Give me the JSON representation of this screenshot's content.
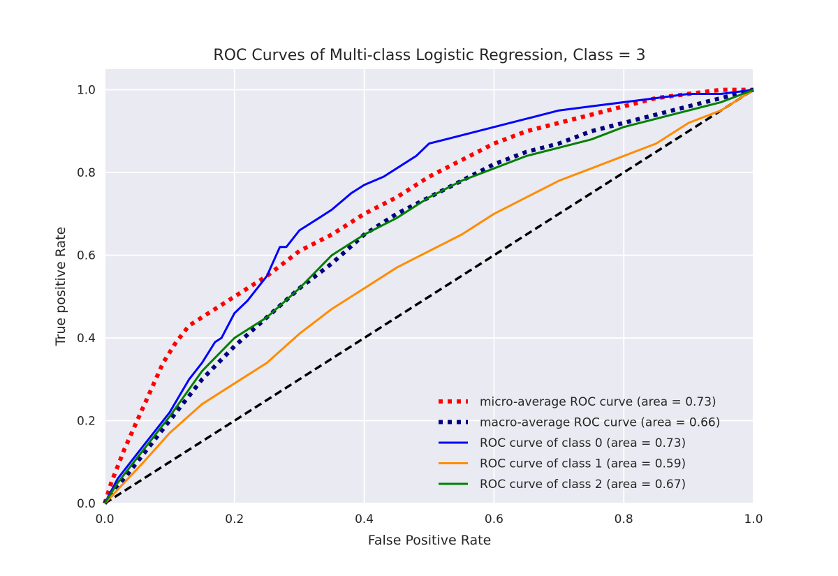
{
  "chart_data": {
    "type": "line",
    "title": "ROC Curves of Multi-class Logistic Regression, Class = 3",
    "xlabel": "False Positive Rate",
    "ylabel": "True positive Rate",
    "xlim": [
      0.0,
      1.0
    ],
    "ylim": [
      0.0,
      1.05
    ],
    "x_ticks": [
      "0.0",
      "0.2",
      "0.4",
      "0.6",
      "0.8",
      "1.0"
    ],
    "y_ticks": [
      "0.0",
      "0.2",
      "0.4",
      "0.6",
      "0.8",
      "1.0"
    ],
    "grid": true,
    "legend_position": "lower-right",
    "series": [
      {
        "name": "micro-average ROC curve (area = 0.73)",
        "color": "#ff0000",
        "style": "dotted",
        "points": [
          [
            0.0,
            0.0
          ],
          [
            0.01,
            0.05
          ],
          [
            0.02,
            0.09
          ],
          [
            0.03,
            0.13
          ],
          [
            0.05,
            0.2
          ],
          [
            0.07,
            0.27
          ],
          [
            0.09,
            0.34
          ],
          [
            0.11,
            0.39
          ],
          [
            0.13,
            0.43
          ],
          [
            0.16,
            0.46
          ],
          [
            0.2,
            0.5
          ],
          [
            0.25,
            0.55
          ],
          [
            0.3,
            0.61
          ],
          [
            0.35,
            0.65
          ],
          [
            0.4,
            0.7
          ],
          [
            0.45,
            0.74
          ],
          [
            0.5,
            0.79
          ],
          [
            0.55,
            0.83
          ],
          [
            0.6,
            0.87
          ],
          [
            0.65,
            0.9
          ],
          [
            0.7,
            0.92
          ],
          [
            0.75,
            0.94
          ],
          [
            0.8,
            0.96
          ],
          [
            0.85,
            0.98
          ],
          [
            0.9,
            0.99
          ],
          [
            0.95,
            1.0
          ],
          [
            1.0,
            1.0
          ]
        ]
      },
      {
        "name": "macro-average ROC curve (area = 0.66)",
        "color": "#000080",
        "style": "dotted",
        "points": [
          [
            0.0,
            0.0
          ],
          [
            0.02,
            0.04
          ],
          [
            0.05,
            0.1
          ],
          [
            0.1,
            0.2
          ],
          [
            0.15,
            0.3
          ],
          [
            0.2,
            0.38
          ],
          [
            0.25,
            0.45
          ],
          [
            0.3,
            0.52
          ],
          [
            0.35,
            0.58
          ],
          [
            0.4,
            0.65
          ],
          [
            0.45,
            0.7
          ],
          [
            0.5,
            0.74
          ],
          [
            0.55,
            0.78
          ],
          [
            0.6,
            0.82
          ],
          [
            0.65,
            0.85
          ],
          [
            0.7,
            0.87
          ],
          [
            0.75,
            0.9
          ],
          [
            0.8,
            0.92
          ],
          [
            0.85,
            0.94
          ],
          [
            0.9,
            0.96
          ],
          [
            0.95,
            0.98
          ],
          [
            1.0,
            1.0
          ]
        ]
      },
      {
        "name": "ROC curve of class 0 (area = 0.73)",
        "color": "#0000ff",
        "style": "solid",
        "points": [
          [
            0.0,
            0.0
          ],
          [
            0.02,
            0.06
          ],
          [
            0.05,
            0.12
          ],
          [
            0.08,
            0.18
          ],
          [
            0.1,
            0.22
          ],
          [
            0.13,
            0.3
          ],
          [
            0.15,
            0.34
          ],
          [
            0.17,
            0.39
          ],
          [
            0.18,
            0.4
          ],
          [
            0.2,
            0.46
          ],
          [
            0.22,
            0.49
          ],
          [
            0.25,
            0.55
          ],
          [
            0.27,
            0.62
          ],
          [
            0.28,
            0.62
          ],
          [
            0.3,
            0.66
          ],
          [
            0.33,
            0.69
          ],
          [
            0.35,
            0.71
          ],
          [
            0.38,
            0.75
          ],
          [
            0.4,
            0.77
          ],
          [
            0.43,
            0.79
          ],
          [
            0.45,
            0.81
          ],
          [
            0.48,
            0.84
          ],
          [
            0.5,
            0.87
          ],
          [
            0.55,
            0.89
          ],
          [
            0.6,
            0.91
          ],
          [
            0.65,
            0.93
          ],
          [
            0.7,
            0.95
          ],
          [
            0.75,
            0.96
          ],
          [
            0.8,
            0.97
          ],
          [
            0.85,
            0.98
          ],
          [
            0.9,
            0.99
          ],
          [
            0.95,
            0.99
          ],
          [
            1.0,
            1.0
          ]
        ]
      },
      {
        "name": "ROC curve of class 1 (area = 0.59)",
        "color": "#ff8c00",
        "style": "solid",
        "points": [
          [
            0.0,
            0.0
          ],
          [
            0.03,
            0.05
          ],
          [
            0.06,
            0.1
          ],
          [
            0.1,
            0.17
          ],
          [
            0.15,
            0.24
          ],
          [
            0.2,
            0.29
          ],
          [
            0.25,
            0.34
          ],
          [
            0.3,
            0.41
          ],
          [
            0.35,
            0.47
          ],
          [
            0.4,
            0.52
          ],
          [
            0.45,
            0.57
          ],
          [
            0.5,
            0.61
          ],
          [
            0.55,
            0.65
          ],
          [
            0.6,
            0.7
          ],
          [
            0.65,
            0.74
          ],
          [
            0.7,
            0.78
          ],
          [
            0.75,
            0.81
          ],
          [
            0.8,
            0.84
          ],
          [
            0.85,
            0.87
          ],
          [
            0.9,
            0.92
          ],
          [
            0.95,
            0.95
          ],
          [
            1.0,
            1.0
          ]
        ]
      },
      {
        "name": "ROC curve of class 2 (area = 0.67)",
        "color": "#008000",
        "style": "solid",
        "points": [
          [
            0.0,
            0.0
          ],
          [
            0.02,
            0.05
          ],
          [
            0.05,
            0.11
          ],
          [
            0.1,
            0.21
          ],
          [
            0.15,
            0.32
          ],
          [
            0.2,
            0.4
          ],
          [
            0.25,
            0.45
          ],
          [
            0.3,
            0.52
          ],
          [
            0.35,
            0.6
          ],
          [
            0.4,
            0.65
          ],
          [
            0.45,
            0.69
          ],
          [
            0.5,
            0.74
          ],
          [
            0.55,
            0.78
          ],
          [
            0.6,
            0.81
          ],
          [
            0.65,
            0.84
          ],
          [
            0.7,
            0.86
          ],
          [
            0.75,
            0.88
          ],
          [
            0.8,
            0.91
          ],
          [
            0.85,
            0.93
          ],
          [
            0.9,
            0.95
          ],
          [
            0.95,
            0.97
          ],
          [
            1.0,
            1.0
          ]
        ]
      },
      {
        "name": "",
        "color": "#000000",
        "style": "dashed",
        "points": [
          [
            0.0,
            0.0
          ],
          [
            1.0,
            1.0
          ]
        ]
      }
    ]
  }
}
